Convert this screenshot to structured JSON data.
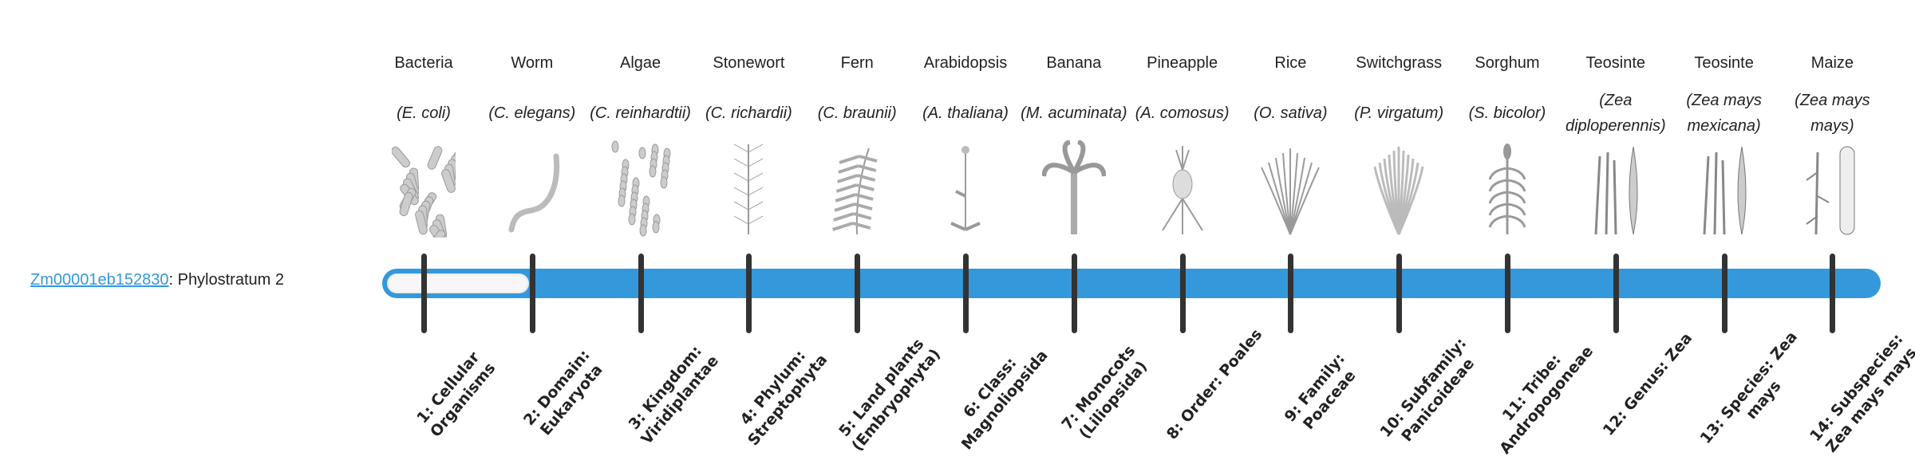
{
  "gene": {
    "id": "Zm00001eb152830",
    "suffix": ": Phylostratum 2",
    "phylostratum": 2
  },
  "colors": {
    "bar": "#3498db",
    "fill": "#f7f7f7",
    "tick": "#333333",
    "link": "#3498db"
  },
  "strata": [
    {
      "common": "Bacteria",
      "species": "(E. coli)",
      "icon": "bacteria-icon",
      "label": "1: Cellular Organisms"
    },
    {
      "common": "Worm",
      "species": "(C. elegans)",
      "icon": "worm-icon",
      "label": "2: Domain: Eukaryota"
    },
    {
      "common": "Algae",
      "species": "(C. reinhardtii)",
      "icon": "algae-icon",
      "label": "3: Kingdom: Viridiplantae"
    },
    {
      "common": "Stonewort",
      "species": "(C. richardii)",
      "icon": "stonewort-icon",
      "label": "4: Phylum: Streptophyta"
    },
    {
      "common": "Fern",
      "species": "(C. braunii)",
      "icon": "fern-icon",
      "label": "5: Land plants (Embryophyta)"
    },
    {
      "common": "Arabidopsis",
      "species": "(A. thaliana)",
      "icon": "arabidopsis-icon",
      "label": "6: Class: Magnoliopsida"
    },
    {
      "common": "Banana",
      "species": "(M. acuminata)",
      "icon": "banana-icon",
      "label": "7: Monocots (Liliopsida)"
    },
    {
      "common": "Pineapple",
      "species": "(A. comosus)",
      "icon": "pineapple-icon",
      "label": "8: Order: Poales"
    },
    {
      "common": "Rice",
      "species": "(O. sativa)",
      "icon": "rice-icon",
      "label": "9: Family: Poaceae"
    },
    {
      "common": "Switchgrass",
      "species": "(P. virgatum)",
      "icon": "switchgrass-icon",
      "label": "10: Subfamily: Panicoideae"
    },
    {
      "common": "Sorghum",
      "species": "(S. bicolor)",
      "icon": "sorghum-icon",
      "label": "11: Tribe: Andropogoneae"
    },
    {
      "common": "Teosinte",
      "species": "(Zea diploperennis)",
      "icon": "teosinte-icon",
      "label": "12: Genus: Zea"
    },
    {
      "common": "Teosinte",
      "species": "(Zea mays mexicana)",
      "icon": "teosinte-mexicana-icon",
      "label": "13: Species: Zea mays"
    },
    {
      "common": "Maize",
      "species": "(Zea mays mays)",
      "icon": "maize-icon",
      "label": "14: Subspecies: Zea mays mays"
    }
  ]
}
